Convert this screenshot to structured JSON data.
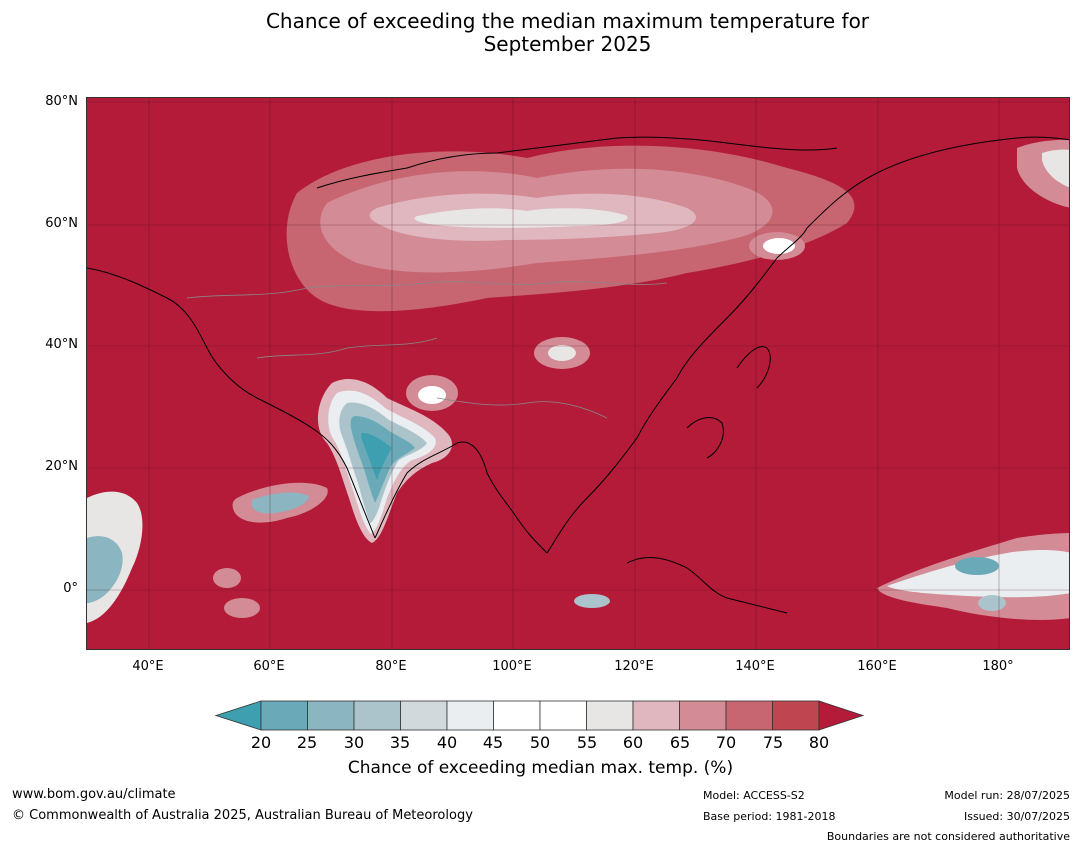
{
  "title_line1": "Chance of exceeding the median maximum temperature for",
  "title_line2": "September 2025",
  "lat_labels": [
    "80°N",
    "60°N",
    "40°N",
    "20°N",
    "0°"
  ],
  "lon_labels": [
    "40°E",
    "60°E",
    "80°E",
    "100°E",
    "120°E",
    "140°E",
    "160°E",
    "180°"
  ],
  "colorbar": {
    "ticks": [
      "20",
      "25",
      "30",
      "35",
      "40",
      "45",
      "50",
      "55",
      "60",
      "65",
      "70",
      "75",
      "80"
    ],
    "colors": [
      "#3e9fb0",
      "#6aaab8",
      "#8ab5c1",
      "#abc4cc",
      "#d1d9dc",
      "#eaeef0",
      "#ffffff",
      "#ffffff",
      "#e8e5e5",
      "#e0b7bf",
      "#d38b96",
      "#c76571",
      "#bf4551",
      "#b31b39"
    ],
    "title": "Chance of exceeding median max. temp. (%)"
  },
  "footer": {
    "website": "www.bom.gov.au/climate",
    "copyright": "© Commonwealth of Australia 2025, Australian Bureau of Meteorology",
    "model": "Model: ACCESS-S2",
    "base_period": "Base period: 1981-2018",
    "model_run": "Model run: 28/07/2025",
    "issued": "Issued: 30/07/2025",
    "disclaimer": "Boundaries are not considered authoritative"
  }
}
